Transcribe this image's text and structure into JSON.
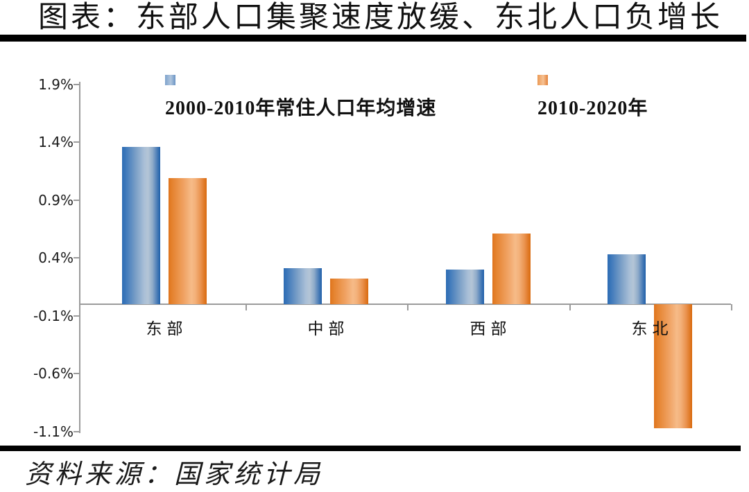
{
  "title": "图表：东部人口集聚速度放缓、东北人口负增长",
  "source_note": "资料来源：国家统计局",
  "colors": {
    "series_blue": "#2E6FB7",
    "series_orange": "#E1761D",
    "axis_gray": "#9B9B9B",
    "rule_black": "#000000"
  },
  "chart_data": {
    "type": "bar",
    "title": "图表：东部人口集聚速度放缓、东北人口负增长",
    "categories": [
      "东部",
      "中部",
      "西部",
      "东北"
    ],
    "series": [
      {
        "name": "2000-2010年常住人口年均增速",
        "color": "#2E6FB7",
        "values": [
          1.36,
          0.31,
          0.3,
          0.43
        ]
      },
      {
        "name": "2010-2020年",
        "color": "#E1761D",
        "values": [
          1.09,
          0.22,
          0.61,
          -1.07
        ]
      }
    ],
    "unit": "%",
    "y_ticks": [
      "1.9%",
      "1.4%",
      "0.9%",
      "0.4%",
      "-0.1%",
      "-0.6%",
      "-1.1%"
    ],
    "ylim": [
      -1.1,
      1.9
    ],
    "tick_step": 0.5,
    "grid": false,
    "legend_position": "top",
    "source": "资料来源：国家统计局"
  }
}
